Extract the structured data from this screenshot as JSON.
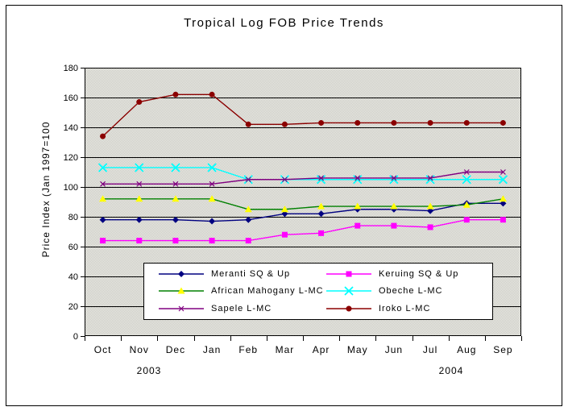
{
  "title": "Tropical Log FOB Price Trends",
  "y_axis": {
    "label": "Price Index (Jan 1997=100",
    "ticks": [
      0,
      20,
      40,
      60,
      80,
      100,
      120,
      140,
      160,
      180
    ]
  },
  "x_axis": {
    "months": [
      "Oct",
      "Nov",
      "Dec",
      "Jan",
      "Feb",
      "Mar",
      "Apr",
      "May",
      "Jun",
      "Jul",
      "Aug",
      "Sep"
    ],
    "year_labels": [
      "2003",
      "2004"
    ]
  },
  "chart_data": {
    "type": "line",
    "title": "Tropical Log FOB Price Trends",
    "categories": [
      "Oct",
      "Nov",
      "Dec",
      "Jan",
      "Feb",
      "Mar",
      "Apr",
      "May",
      "Jun",
      "Jul",
      "Aug",
      "Sep"
    ],
    "xlabel": "",
    "ylabel": "Price Index (Jan 1997=100",
    "ylim": [
      0,
      180
    ],
    "ytick_step": 20,
    "grid": true,
    "legend_position": "bottom-center-overlay",
    "plot_bg_checker": [
      "#C8C8C0",
      "#EDEDE9"
    ],
    "axis_color": "#000000",
    "series": [
      {
        "name": "Meranti SQ & Up",
        "color": "#000080",
        "marker": "diamond",
        "marker_color": "#000080",
        "values": [
          78,
          78,
          78,
          77,
          78,
          82,
          82,
          85,
          85,
          84,
          89,
          89
        ]
      },
      {
        "name": "Keruing SQ & Up",
        "color": "#FF00FF",
        "marker": "square",
        "marker_color": "#FF00FF",
        "values": [
          64,
          64,
          64,
          64,
          64,
          68,
          69,
          74,
          74,
          73,
          78,
          78
        ]
      },
      {
        "name": "African Mahogany L-MC",
        "color": "#008000",
        "marker": "triangle",
        "marker_color": "#FFFF00",
        "values": [
          92,
          92,
          92,
          92,
          85,
          85,
          87,
          87,
          87,
          87,
          88,
          92
        ]
      },
      {
        "name": "Obeche L-MC",
        "color": "#00FFFF",
        "marker": "x-big",
        "marker_color": "#00FFFF",
        "values": [
          113,
          113,
          113,
          113,
          105,
          105,
          105,
          105,
          105,
          105,
          105,
          105
        ]
      },
      {
        "name": "Sapele L-MC",
        "color": "#800080",
        "marker": "x-small",
        "marker_color": "#800080",
        "values": [
          102,
          102,
          102,
          102,
          105,
          105,
          106,
          106,
          106,
          106,
          110,
          110
        ]
      },
      {
        "name": "Iroko L-MC",
        "color": "#8B0000",
        "marker": "circle",
        "marker_color": "#8B0000",
        "values": [
          134,
          157,
          162,
          162,
          142,
          142,
          143,
          143,
          143,
          143,
          143,
          143
        ]
      }
    ]
  }
}
